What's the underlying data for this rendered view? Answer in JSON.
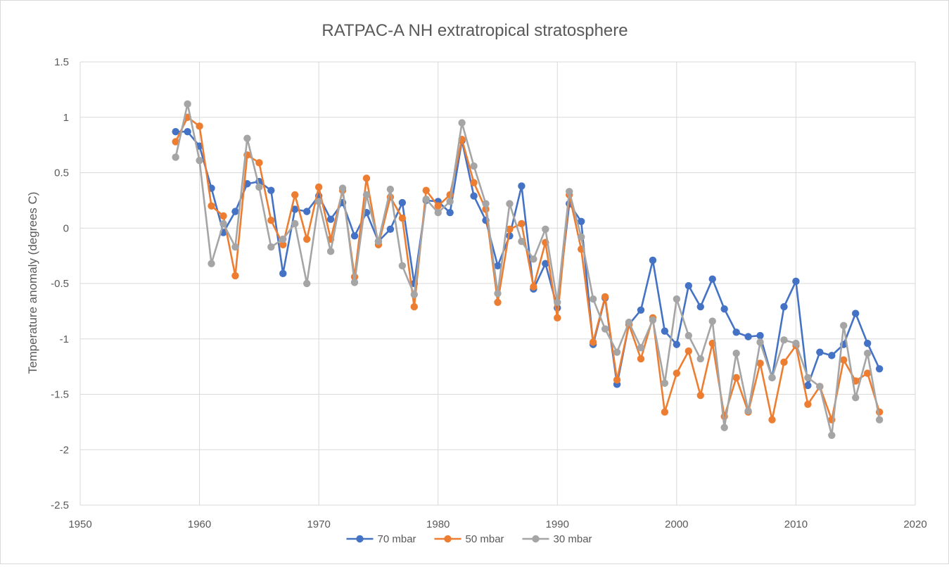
{
  "chart_data": {
    "type": "line",
    "title": "RATPAC-A NH extratropical stratosphere",
    "xlabel": "",
    "ylabel": "Temperature anomaly (degrees C)",
    "xlim": [
      1950,
      2020
    ],
    "ylim": [
      -2.5,
      1.5
    ],
    "xticks": [
      1950,
      1960,
      1970,
      1980,
      1990,
      2000,
      2010,
      2020
    ],
    "yticks": [
      1.5,
      1,
      0.5,
      0,
      -0.5,
      -1,
      -1.5,
      -2,
      -2.5
    ],
    "ytick_labels": [
      "1.5",
      "1",
      "0.5",
      "0",
      "-0.5",
      "-1",
      "-1.5",
      "-2",
      "-2.5"
    ],
    "grid": true,
    "legend_position": "bottom",
    "x": [
      1958,
      1959,
      1960,
      1961,
      1962,
      1963,
      1964,
      1965,
      1966,
      1967,
      1968,
      1969,
      1970,
      1971,
      1972,
      1973,
      1974,
      1975,
      1976,
      1977,
      1978,
      1979,
      1980,
      1981,
      1982,
      1983,
      1984,
      1985,
      1986,
      1987,
      1988,
      1989,
      1990,
      1991,
      1992,
      1993,
      1994,
      1995,
      1996,
      1997,
      1998,
      1999,
      2000,
      2001,
      2002,
      2003,
      2004,
      2005,
      2006,
      2007,
      2008,
      2009,
      2010,
      2011,
      2012,
      2013,
      2014,
      2015,
      2016,
      2017
    ],
    "series": [
      {
        "name": "70 mbar",
        "color": "#4472C4",
        "values": [
          0.87,
          0.87,
          0.74,
          0.36,
          -0.04,
          0.15,
          0.4,
          0.42,
          0.34,
          -0.41,
          0.17,
          0.15,
          0.29,
          0.08,
          0.23,
          -0.07,
          0.14,
          -0.12,
          -0.01,
          0.23,
          -0.5,
          0.25,
          0.24,
          0.14,
          0.79,
          0.29,
          0.07,
          -0.34,
          -0.07,
          0.38,
          -0.55,
          -0.32,
          -0.72,
          0.22,
          0.06,
          -1.05,
          -0.63,
          -1.41,
          -0.87,
          -0.74,
          -0.29,
          -0.93,
          -1.05,
          -0.52,
          -0.71,
          -0.46,
          -0.73,
          -0.94,
          -0.98,
          -0.97,
          -1.35,
          -0.71,
          -0.48,
          -1.42,
          -1.12,
          -1.15,
          -1.05,
          -0.77,
          -1.04,
          -1.27
        ]
      },
      {
        "name": "50 mbar",
        "color": "#ED7D31",
        "values": [
          0.78,
          1.0,
          0.92,
          0.2,
          0.11,
          -0.43,
          0.66,
          0.59,
          0.07,
          -0.15,
          0.3,
          -0.1,
          0.37,
          -0.1,
          0.34,
          -0.44,
          0.45,
          -0.15,
          0.28,
          0.09,
          -0.71,
          0.34,
          0.2,
          0.3,
          0.8,
          0.41,
          0.17,
          -0.67,
          -0.01,
          0.04,
          -0.53,
          -0.13,
          -0.81,
          0.3,
          -0.19,
          -1.03,
          -0.62,
          -1.37,
          -0.87,
          -1.18,
          -0.81,
          -1.66,
          -1.31,
          -1.11,
          -1.51,
          -1.04,
          -1.7,
          -1.35,
          -1.66,
          -1.22,
          -1.73,
          -1.21,
          -1.06,
          -1.59,
          -1.43,
          -1.73,
          -1.19,
          -1.38,
          -1.31,
          -1.66
        ]
      },
      {
        "name": "30 mbar",
        "color": "#A5A5A5",
        "values": [
          0.64,
          1.12,
          0.61,
          -0.32,
          0.04,
          -0.17,
          0.81,
          0.37,
          -0.17,
          -0.1,
          0.04,
          -0.5,
          0.24,
          -0.21,
          0.36,
          -0.49,
          0.3,
          -0.12,
          0.35,
          -0.34,
          -0.6,
          0.26,
          0.14,
          0.24,
          0.95,
          0.56,
          0.22,
          -0.59,
          0.22,
          -0.12,
          -0.28,
          -0.01,
          -0.67,
          0.33,
          -0.08,
          -0.64,
          -0.91,
          -1.12,
          -0.85,
          -1.08,
          -0.83,
          -1.4,
          -0.64,
          -0.97,
          -1.18,
          -0.84,
          -1.8,
          -1.13,
          -1.65,
          -1.03,
          -1.35,
          -1.01,
          -1.04,
          -1.35,
          -1.43,
          -1.87,
          -0.88,
          -1.53,
          -1.13,
          -1.73
        ]
      }
    ]
  }
}
